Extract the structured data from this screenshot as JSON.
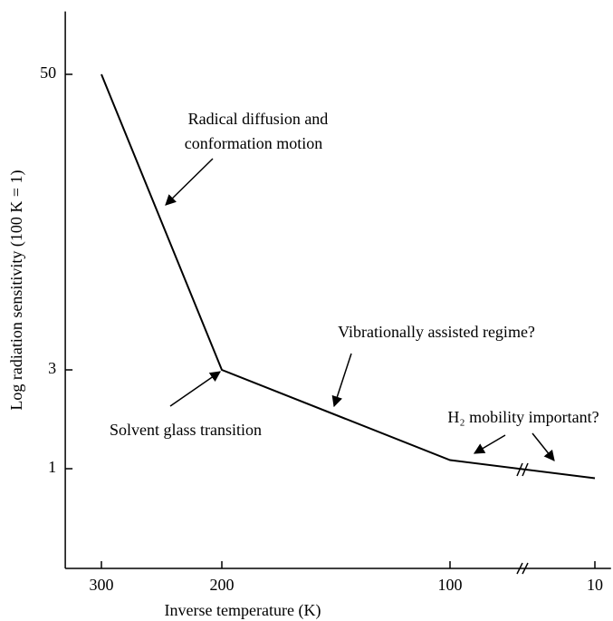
{
  "chart_data": {
    "type": "line",
    "x": [
      300,
      200,
      100,
      10
    ],
    "values": [
      50,
      3,
      1.1,
      0.9
    ],
    "color": "#000000",
    "xlabel": "Inverse temperature (K)",
    "ylabel": "Log radiation sensitivity (100 K = 1)",
    "xlim": [
      330,
      0
    ],
    "xticks": [
      300,
      200,
      100,
      10
    ],
    "ylim": [
      0.33,
      91
    ],
    "yticks": [
      1,
      3,
      50
    ],
    "ylog": true,
    "annotations": [
      "Radical diffusion and",
      "conformation motion",
      "Vibrationally assisted regime?",
      "Solvent glass transition",
      "H₂ mobility important?"
    ]
  }
}
